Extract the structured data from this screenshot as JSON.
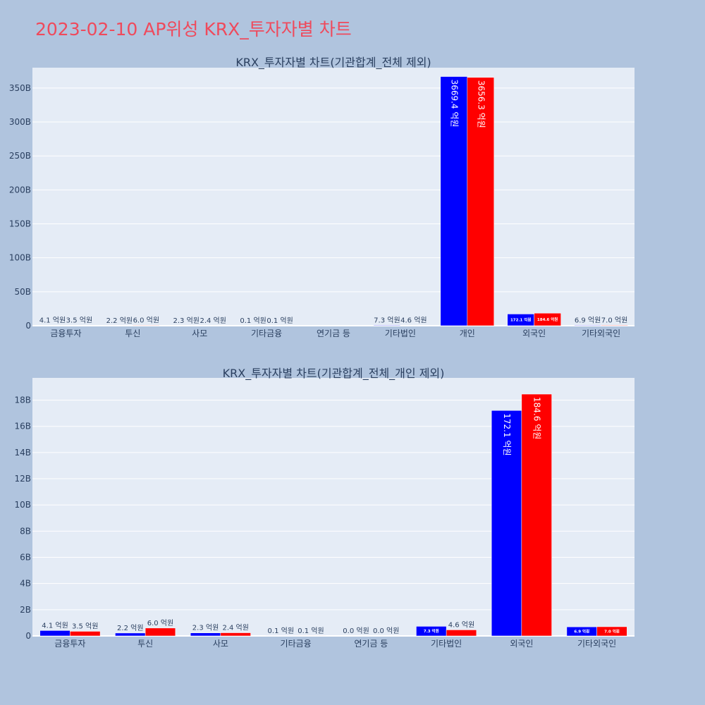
{
  "page_title": "2023-02-10 AP위성 KRX_투자자별 차트",
  "colors": {
    "background": "#b0c4de",
    "plot_bg": "#e5ecf6",
    "title": "#ef4a5c",
    "series_a": "#0000ff",
    "series_b": "#ff0000"
  },
  "chart_data": [
    {
      "type": "bar",
      "title": "KRX_투자자별 차트(기관합계_전체 제외)",
      "categories": [
        "금융투자",
        "투신",
        "사모",
        "기타금융",
        "연기금 등",
        "기타법인",
        "개인",
        "외국인",
        "기타외국인"
      ],
      "ylim": [
        0,
        380
      ],
      "yticks": [
        0,
        50,
        100,
        150,
        200,
        250,
        300,
        350
      ],
      "ytick_labels": [
        "0",
        "50B",
        "100B",
        "150B",
        "200B",
        "250B",
        "300B",
        "350B"
      ],
      "grid": true,
      "series": [
        {
          "values": [
            0.41,
            0.22,
            0.23,
            0.01,
            0.0,
            0.73,
            366.94,
            17.21,
            0.69
          ],
          "labels": [
            "4.1 억원",
            "2.2 억원",
            "2.3 억원",
            "0.1 억원",
            "",
            "7.3 억원",
            "3669.4 억원",
            "172.1 억원",
            "6.9 억원"
          ]
        },
        {
          "values": [
            0.35,
            0.6,
            0.24,
            0.01,
            0.0,
            0.46,
            365.63,
            18.46,
            0.7
          ],
          "labels": [
            "3.5 억원",
            "6.0 억원",
            "2.4 억원",
            "0.1 억원",
            "",
            "4.6 억원",
            "3656.3 억원",
            "184.6 억원",
            "7.0 억원"
          ]
        }
      ]
    },
    {
      "type": "bar",
      "title": "KRX_투자자별 차트(기관합계_전체_개인 제외)",
      "categories": [
        "금융투자",
        "투신",
        "사모",
        "기타금융",
        "연기금 등",
        "기타법인",
        "외국인",
        "기타외국인"
      ],
      "ylim": [
        0,
        19.7
      ],
      "yticks": [
        0,
        2,
        4,
        6,
        8,
        10,
        12,
        14,
        16,
        18
      ],
      "ytick_labels": [
        "0",
        "2B",
        "4B",
        "6B",
        "8B",
        "10B",
        "12B",
        "14B",
        "16B",
        "18B"
      ],
      "grid": true,
      "series": [
        {
          "values": [
            0.41,
            0.22,
            0.23,
            0.01,
            0.0,
            0.73,
            17.21,
            0.69
          ],
          "labels": [
            "4.1 억원",
            "2.2 억원",
            "2.3 억원",
            "0.1 억원",
            "0.0 억원",
            "7.3 억원",
            "172.1 억원",
            "6.9 억원"
          ]
        },
        {
          "values": [
            0.35,
            0.6,
            0.24,
            0.01,
            0.0,
            0.46,
            18.46,
            0.7
          ],
          "labels": [
            "3.5 억원",
            "6.0 억원",
            "2.4 억원",
            "0.1 억원",
            "0.0 억원",
            "4.6 억원",
            "184.6 억원",
            "7.0 억원"
          ]
        }
      ]
    }
  ]
}
